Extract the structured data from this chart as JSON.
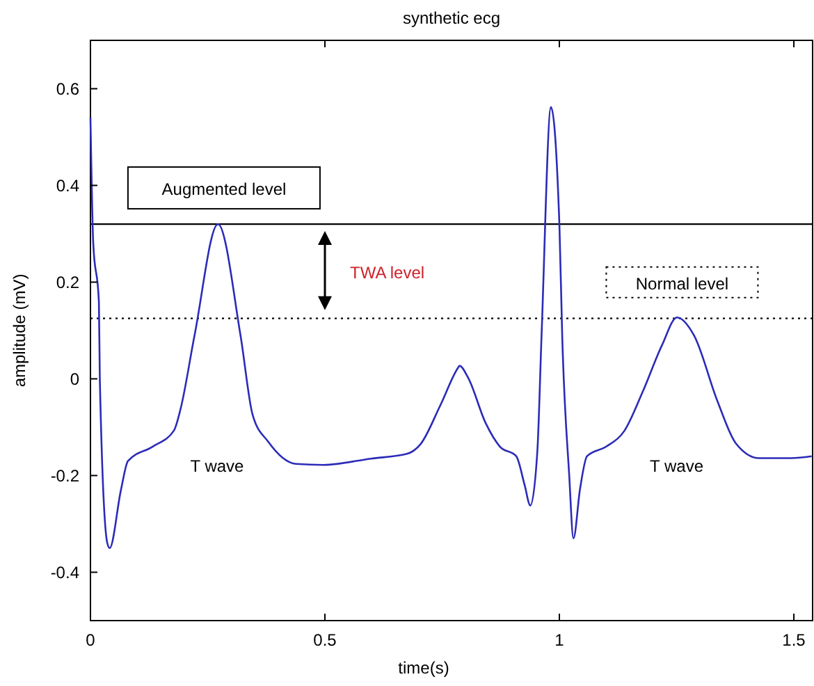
{
  "chart_data": {
    "type": "line",
    "title": "synthetic ecg",
    "xlabel": "time(s)",
    "ylabel": "amplitude (mV)",
    "xlim": [
      0,
      1.54
    ],
    "ylim": [
      -0.5,
      0.7
    ],
    "xticks": [
      0,
      0.5,
      1,
      1.5
    ],
    "yticks": [
      -0.4,
      -0.2,
      0,
      0.2,
      0.4,
      0.6
    ],
    "grid": false,
    "marker": "none",
    "line_style": "solid",
    "series": [
      {
        "color": "#2b2bb8",
        "x": [
          0,
          0.006,
          0.018,
          0.02,
          0.036,
          0.041,
          0.065,
          0.08,
          0.133,
          0.178,
          0.192,
          0.222,
          0.272,
          0.32,
          0.346,
          0.379,
          0.438,
          0.497,
          0.598,
          0.675,
          0.704,
          0.746,
          0.784,
          0.787,
          0.805,
          0.843,
          0.873,
          0.908,
          0.926,
          0.938,
          0.953,
          0.962,
          0.982,
          1.0,
          1.006,
          1.021,
          1.03,
          1.044,
          1.059,
          1.1,
          1.139,
          1.178,
          1.219,
          1.251,
          1.287,
          1.337,
          1.376,
          1.426,
          1.494,
          1.538
        ],
        "values": [
          0.54,
          0.28,
          0.16,
          0.0,
          -0.34,
          -0.35,
          -0.23,
          -0.17,
          -0.14,
          -0.107,
          -0.063,
          0.09,
          0.32,
          0.09,
          -0.075,
          -0.13,
          -0.176,
          -0.178,
          -0.165,
          -0.155,
          -0.135,
          -0.055,
          0.023,
          0.027,
          0.003,
          -0.092,
          -0.14,
          -0.16,
          -0.22,
          -0.262,
          -0.15,
          0.09,
          0.562,
          0.32,
          0.09,
          -0.2,
          -0.33,
          -0.228,
          -0.16,
          -0.14,
          -0.107,
          -0.026,
          0.07,
          0.127,
          0.09,
          -0.046,
          -0.133,
          -0.164,
          -0.164,
          -0.16
        ]
      }
    ],
    "ref_lines": [
      {
        "axis": "y",
        "value": 0.32,
        "label": "Augmented level",
        "color": "#000000",
        "line_style": "solid"
      },
      {
        "axis": "y",
        "value": 0.125,
        "label": "Normal level",
        "color": "#000000",
        "line_style": "dotted"
      }
    ],
    "annotations": [
      "TWA level",
      "T wave",
      "T wave"
    ]
  }
}
